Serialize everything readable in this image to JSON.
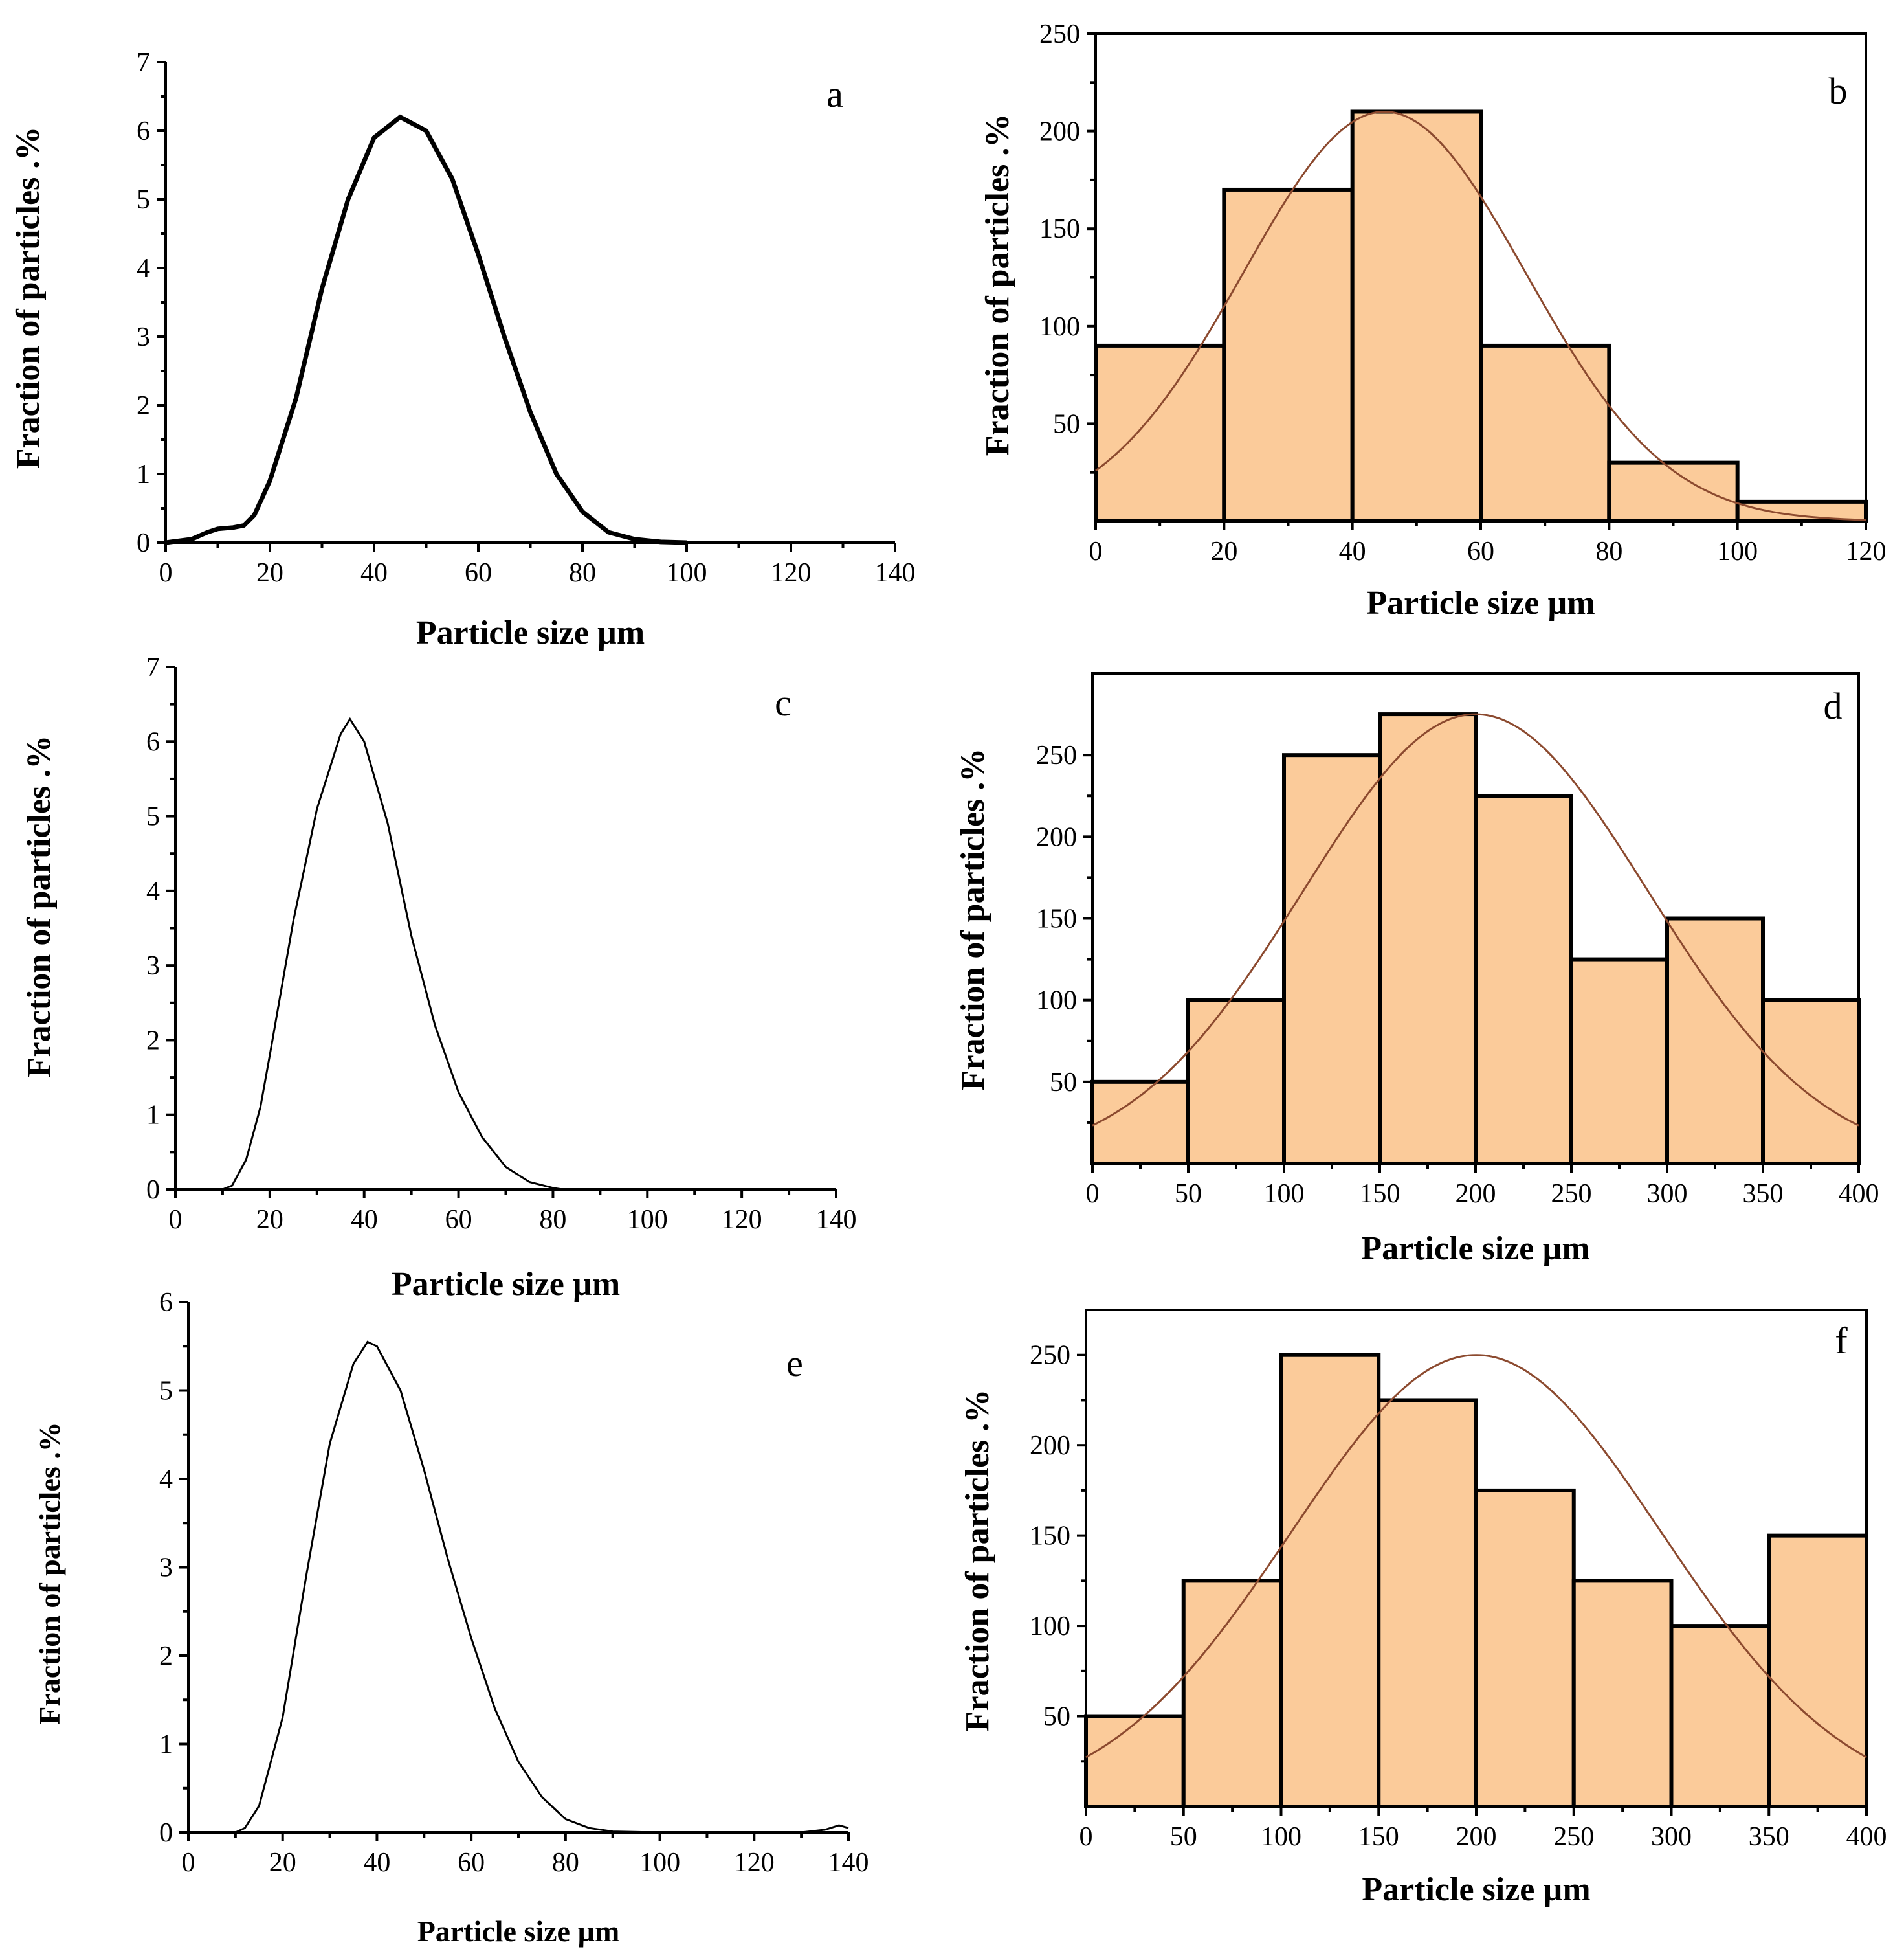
{
  "chart_data": [
    {
      "id": "a",
      "type": "line",
      "panel_label": "a",
      "xlabel": "Particle size µm",
      "ylabel": "Fraction of particles .%",
      "xlim": [
        0,
        140
      ],
      "ylim": [
        0,
        7
      ],
      "xticks": [
        0,
        20,
        40,
        60,
        80,
        100,
        120,
        140
      ],
      "yticks": [
        0,
        1,
        2,
        3,
        4,
        5,
        6,
        7
      ],
      "x": [
        0,
        5,
        8,
        10,
        13,
        15,
        17,
        20,
        25,
        30,
        35,
        40,
        45,
        50,
        55,
        60,
        65,
        70,
        75,
        80,
        85,
        90,
        95,
        100
      ],
      "y": [
        0,
        0.05,
        0.15,
        0.2,
        0.22,
        0.25,
        0.4,
        0.9,
        2.1,
        3.7,
        5.0,
        5.9,
        6.2,
        6.0,
        5.3,
        4.2,
        3.0,
        1.9,
        1.0,
        0.45,
        0.15,
        0.05,
        0.01,
        0
      ]
    },
    {
      "id": "b",
      "type": "bar",
      "panel_label": "b",
      "xlabel": "Particle size µm",
      "ylabel": "Fraction of particles .%",
      "xlim": [
        0,
        120
      ],
      "ylim": [
        0,
        250
      ],
      "xticks": [
        0,
        20,
        40,
        60,
        80,
        100,
        120
      ],
      "yticks": [
        50,
        100,
        150,
        200,
        250
      ],
      "bins": [
        [
          0,
          20
        ],
        [
          20,
          40
        ],
        [
          40,
          60
        ],
        [
          60,
          80
        ],
        [
          80,
          100
        ],
        [
          100,
          120
        ]
      ],
      "values": [
        90,
        170,
        210,
        90,
        30,
        10
      ],
      "fit": {
        "type": "normal",
        "mean": 45,
        "sd": 22,
        "peak": 210
      }
    },
    {
      "id": "c",
      "type": "line",
      "panel_label": "c",
      "xlabel": "Particle size µm",
      "ylabel": "Fraction of particles .%",
      "xlim": [
        0,
        140
      ],
      "ylim": [
        0,
        7
      ],
      "xticks": [
        0,
        20,
        40,
        60,
        80,
        100,
        120,
        140
      ],
      "yticks": [
        0,
        1,
        2,
        3,
        4,
        5,
        6,
        7
      ],
      "x": [
        0,
        10,
        12,
        15,
        18,
        20,
        25,
        30,
        35,
        37,
        40,
        45,
        50,
        55,
        60,
        65,
        70,
        75,
        80,
        82
      ],
      "y": [
        0,
        0,
        0.05,
        0.4,
        1.1,
        1.8,
        3.6,
        5.1,
        6.1,
        6.3,
        6.0,
        4.9,
        3.4,
        2.2,
        1.3,
        0.7,
        0.3,
        0.1,
        0.02,
        0
      ]
    },
    {
      "id": "d",
      "type": "bar",
      "panel_label": "d",
      "xlabel": "Particle size µm",
      "ylabel": "Fraction of particles .%",
      "xlim": [
        0,
        400
      ],
      "ylim": [
        0,
        300
      ],
      "xticks": [
        0,
        50,
        100,
        150,
        200,
        250,
        300,
        350,
        400
      ],
      "yticks": [
        50,
        100,
        150,
        200,
        250
      ],
      "bins": [
        [
          0,
          50
        ],
        [
          50,
          100
        ],
        [
          100,
          150
        ],
        [
          150,
          200
        ],
        [
          200,
          250
        ],
        [
          250,
          300
        ],
        [
          300,
          350
        ],
        [
          350,
          400
        ]
      ],
      "values": [
        50,
        100,
        250,
        275,
        225,
        125,
        150,
        100
      ],
      "fit": {
        "type": "normal",
        "mean": 200,
        "sd": 90,
        "peak": 275
      }
    },
    {
      "id": "e",
      "type": "line",
      "panel_label": "e",
      "xlabel": "Particle size µm",
      "ylabel": "Fraction of particles .%",
      "xlim": [
        0,
        140
      ],
      "ylim": [
        0,
        6
      ],
      "xticks": [
        0,
        20,
        40,
        60,
        80,
        100,
        120,
        140
      ],
      "yticks": [
        0,
        1,
        2,
        3,
        4,
        5,
        6
      ],
      "x": [
        0,
        10,
        12,
        15,
        20,
        25,
        30,
        35,
        38,
        40,
        45,
        50,
        55,
        60,
        65,
        70,
        75,
        80,
        85,
        90,
        100,
        130,
        135,
        138,
        140
      ],
      "y": [
        0,
        0,
        0.05,
        0.3,
        1.3,
        2.9,
        4.4,
        5.3,
        5.55,
        5.5,
        5.0,
        4.1,
        3.1,
        2.2,
        1.4,
        0.8,
        0.4,
        0.15,
        0.05,
        0.01,
        0,
        0,
        0.03,
        0.08,
        0.05
      ]
    },
    {
      "id": "f",
      "type": "bar",
      "panel_label": "f",
      "xlabel": "Particle size µm",
      "ylabel": "Fraction of particles .%",
      "xlim": [
        0,
        400
      ],
      "ylim": [
        0,
        275
      ],
      "xticks": [
        0,
        50,
        100,
        150,
        200,
        250,
        300,
        350,
        400
      ],
      "yticks": [
        50,
        100,
        150,
        200,
        250
      ],
      "bins": [
        [
          0,
          50
        ],
        [
          50,
          100
        ],
        [
          100,
          150
        ],
        [
          150,
          200
        ],
        [
          200,
          250
        ],
        [
          250,
          300
        ],
        [
          300,
          350
        ],
        [
          350,
          400
        ]
      ],
      "values": [
        50,
        125,
        250,
        225,
        175,
        125,
        100,
        150
      ],
      "fit": {
        "type": "normal",
        "mean": 200,
        "sd": 95,
        "peak": 250
      }
    }
  ]
}
